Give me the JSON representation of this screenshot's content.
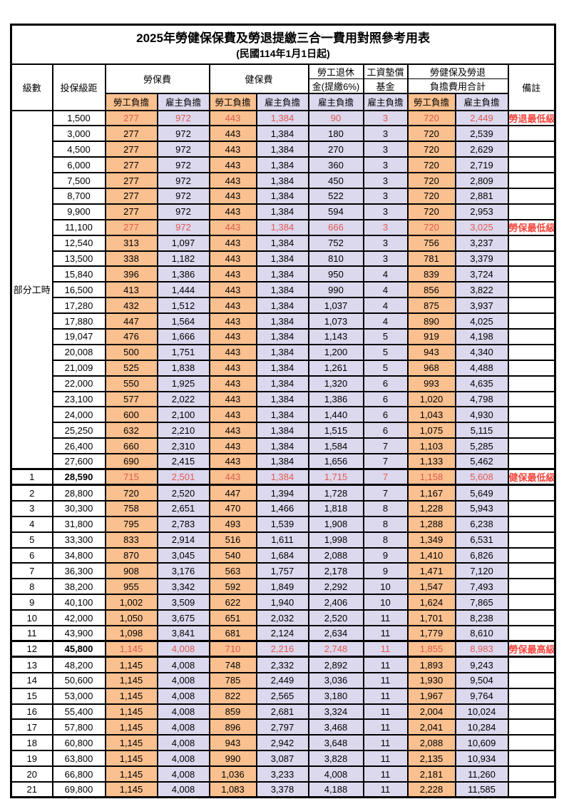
{
  "title": "2025年勞健保保費及勞退提繳三合一費用對照參考用表",
  "subtitle": "(民國114年1月1日起)",
  "columns": {
    "level": "級數",
    "bracket": "投保級距",
    "labor_insurance": "勞保費",
    "health_insurance": "健保費",
    "pension_line1": "勞工退休",
    "pension_line2": "金(提繳6%)",
    "wage_fund_line1": "工資墊償",
    "wage_fund_line2": "基金",
    "total_line1": "勞健保及勞退",
    "total_line2": "負擔費用合計",
    "remark": "備註",
    "employee": "勞工負擔",
    "employer": "雇主負擔"
  },
  "colors": {
    "employee_bg": "#fac08f",
    "employer_bg": "#dcd8ee",
    "highlight_red": "#e05a50",
    "note_red": "#f4473f"
  },
  "part_time_label": "部分工時",
  "part_time_span": 23,
  "rows": [
    {
      "level": "",
      "bracket": "1,500",
      "values": [
        "277",
        "972",
        "443",
        "1,384",
        "90",
        "3",
        "720",
        "2,449"
      ],
      "note": "勞退最低級距",
      "red": true,
      "bold": false,
      "thick": false
    },
    {
      "level": "",
      "bracket": "3,000",
      "values": [
        "277",
        "972",
        "443",
        "1,384",
        "180",
        "3",
        "720",
        "2,539"
      ],
      "note": "",
      "red": false,
      "bold": false,
      "thick": false
    },
    {
      "level": "",
      "bracket": "4,500",
      "values": [
        "277",
        "972",
        "443",
        "1,384",
        "270",
        "3",
        "720",
        "2,629"
      ],
      "note": "",
      "red": false,
      "bold": false,
      "thick": false
    },
    {
      "level": "",
      "bracket": "6,000",
      "values": [
        "277",
        "972",
        "443",
        "1,384",
        "360",
        "3",
        "720",
        "2,719"
      ],
      "note": "",
      "red": false,
      "bold": false,
      "thick": false
    },
    {
      "level": "",
      "bracket": "7,500",
      "values": [
        "277",
        "972",
        "443",
        "1,384",
        "450",
        "3",
        "720",
        "2,809"
      ],
      "note": "",
      "red": false,
      "bold": false,
      "thick": false
    },
    {
      "level": "",
      "bracket": "8,700",
      "values": [
        "277",
        "972",
        "443",
        "1,384",
        "522",
        "3",
        "720",
        "2,881"
      ],
      "note": "",
      "red": false,
      "bold": false,
      "thick": false
    },
    {
      "level": "",
      "bracket": "9,900",
      "values": [
        "277",
        "972",
        "443",
        "1,384",
        "594",
        "3",
        "720",
        "2,953"
      ],
      "note": "",
      "red": false,
      "bold": false,
      "thick": false
    },
    {
      "level": "",
      "bracket": "11,100",
      "values": [
        "277",
        "972",
        "443",
        "1,384",
        "666",
        "3",
        "720",
        "3,025"
      ],
      "note": "勞保最低級距",
      "red": true,
      "bold": false,
      "thick": false
    },
    {
      "level": "",
      "bracket": "12,540",
      "values": [
        "313",
        "1,097",
        "443",
        "1,384",
        "752",
        "3",
        "756",
        "3,237"
      ],
      "note": "",
      "red": false,
      "bold": false,
      "thick": false
    },
    {
      "level": "",
      "bracket": "13,500",
      "values": [
        "338",
        "1,182",
        "443",
        "1,384",
        "810",
        "3",
        "781",
        "3,379"
      ],
      "note": "",
      "red": false,
      "bold": false,
      "thick": false
    },
    {
      "level": "",
      "bracket": "15,840",
      "values": [
        "396",
        "1,386",
        "443",
        "1,384",
        "950",
        "4",
        "839",
        "3,724"
      ],
      "note": "",
      "red": false,
      "bold": false,
      "thick": false
    },
    {
      "level": "",
      "bracket": "16,500",
      "values": [
        "413",
        "1,444",
        "443",
        "1,384",
        "990",
        "4",
        "856",
        "3,822"
      ],
      "note": "",
      "red": false,
      "bold": false,
      "thick": false
    },
    {
      "level": "",
      "bracket": "17,280",
      "values": [
        "432",
        "1,512",
        "443",
        "1,384",
        "1,037",
        "4",
        "875",
        "3,937"
      ],
      "note": "",
      "red": false,
      "bold": false,
      "thick": false
    },
    {
      "level": "",
      "bracket": "17,880",
      "values": [
        "447",
        "1,564",
        "443",
        "1,384",
        "1,073",
        "4",
        "890",
        "4,025"
      ],
      "note": "",
      "red": false,
      "bold": false,
      "thick": false
    },
    {
      "level": "",
      "bracket": "19,047",
      "values": [
        "476",
        "1,666",
        "443",
        "1,384",
        "1,143",
        "5",
        "919",
        "4,198"
      ],
      "note": "",
      "red": false,
      "bold": false,
      "thick": false
    },
    {
      "level": "",
      "bracket": "20,008",
      "values": [
        "500",
        "1,751",
        "443",
        "1,384",
        "1,200",
        "5",
        "943",
        "4,340"
      ],
      "note": "",
      "red": false,
      "bold": false,
      "thick": false
    },
    {
      "level": "",
      "bracket": "21,009",
      "values": [
        "525",
        "1,838",
        "443",
        "1,384",
        "1,261",
        "5",
        "968",
        "4,488"
      ],
      "note": "",
      "red": false,
      "bold": false,
      "thick": false
    },
    {
      "level": "",
      "bracket": "22,000",
      "values": [
        "550",
        "1,925",
        "443",
        "1,384",
        "1,320",
        "6",
        "993",
        "4,635"
      ],
      "note": "",
      "red": false,
      "bold": false,
      "thick": false
    },
    {
      "level": "",
      "bracket": "23,100",
      "values": [
        "577",
        "2,022",
        "443",
        "1,384",
        "1,386",
        "6",
        "1,020",
        "4,798"
      ],
      "note": "",
      "red": false,
      "bold": false,
      "thick": false
    },
    {
      "level": "",
      "bracket": "24,000",
      "values": [
        "600",
        "2,100",
        "443",
        "1,384",
        "1,440",
        "6",
        "1,043",
        "4,930"
      ],
      "note": "",
      "red": false,
      "bold": false,
      "thick": false
    },
    {
      "level": "",
      "bracket": "25,250",
      "values": [
        "632",
        "2,210",
        "443",
        "1,384",
        "1,515",
        "6",
        "1,075",
        "5,115"
      ],
      "note": "",
      "red": false,
      "bold": false,
      "thick": false
    },
    {
      "level": "",
      "bracket": "26,400",
      "values": [
        "660",
        "2,310",
        "443",
        "1,384",
        "1,584",
        "7",
        "1,103",
        "5,285"
      ],
      "note": "",
      "red": false,
      "bold": false,
      "thick": false
    },
    {
      "level": "",
      "bracket": "27,600",
      "values": [
        "690",
        "2,415",
        "443",
        "1,384",
        "1,656",
        "7",
        "1,133",
        "5,462"
      ],
      "note": "",
      "red": false,
      "bold": false,
      "thick": false
    },
    {
      "level": "1",
      "bracket": "28,590",
      "values": [
        "715",
        "2,501",
        "443",
        "1,384",
        "1,715",
        "7",
        "1,158",
        "5,608"
      ],
      "note": "健保最低級距",
      "red": true,
      "bold": true,
      "thick": true
    },
    {
      "level": "2",
      "bracket": "28,800",
      "values": [
        "720",
        "2,520",
        "447",
        "1,394",
        "1,728",
        "7",
        "1,167",
        "5,649"
      ],
      "note": "",
      "red": false,
      "bold": false,
      "thick": false
    },
    {
      "level": "3",
      "bracket": "30,300",
      "values": [
        "758",
        "2,651",
        "470",
        "1,466",
        "1,818",
        "8",
        "1,228",
        "5,943"
      ],
      "note": "",
      "red": false,
      "bold": false,
      "thick": false
    },
    {
      "level": "4",
      "bracket": "31,800",
      "values": [
        "795",
        "2,783",
        "493",
        "1,539",
        "1,908",
        "8",
        "1,288",
        "6,238"
      ],
      "note": "",
      "red": false,
      "bold": false,
      "thick": false
    },
    {
      "level": "5",
      "bracket": "33,300",
      "values": [
        "833",
        "2,914",
        "516",
        "1,611",
        "1,998",
        "8",
        "1,349",
        "6,531"
      ],
      "note": "",
      "red": false,
      "bold": false,
      "thick": false
    },
    {
      "level": "6",
      "bracket": "34,800",
      "values": [
        "870",
        "3,045",
        "540",
        "1,684",
        "2,088",
        "9",
        "1,410",
        "6,826"
      ],
      "note": "",
      "red": false,
      "bold": false,
      "thick": false
    },
    {
      "level": "7",
      "bracket": "36,300",
      "values": [
        "908",
        "3,176",
        "563",
        "1,757",
        "2,178",
        "9",
        "1,471",
        "7,120"
      ],
      "note": "",
      "red": false,
      "bold": false,
      "thick": false
    },
    {
      "level": "8",
      "bracket": "38,200",
      "values": [
        "955",
        "3,342",
        "592",
        "1,849",
        "2,292",
        "10",
        "1,547",
        "7,493"
      ],
      "note": "",
      "red": false,
      "bold": false,
      "thick": false
    },
    {
      "level": "9",
      "bracket": "40,100",
      "values": [
        "1,002",
        "3,509",
        "622",
        "1,940",
        "2,406",
        "10",
        "1,624",
        "7,865"
      ],
      "note": "",
      "red": false,
      "bold": false,
      "thick": false
    },
    {
      "level": "10",
      "bracket": "42,000",
      "values": [
        "1,050",
        "3,675",
        "651",
        "2,032",
        "2,520",
        "11",
        "1,701",
        "8,238"
      ],
      "note": "",
      "red": false,
      "bold": false,
      "thick": false
    },
    {
      "level": "11",
      "bracket": "43,900",
      "values": [
        "1,098",
        "3,841",
        "681",
        "2,124",
        "2,634",
        "11",
        "1,779",
        "8,610"
      ],
      "note": "",
      "red": false,
      "bold": false,
      "thick": false
    },
    {
      "level": "12",
      "bracket": "45,800",
      "values": [
        "1,145",
        "4,008",
        "710",
        "2,216",
        "2,748",
        "11",
        "1,855",
        "8,983"
      ],
      "note": "勞保最高級距",
      "red": true,
      "bold": true,
      "thick": true
    },
    {
      "level": "13",
      "bracket": "48,200",
      "values": [
        "1,145",
        "4,008",
        "748",
        "2,332",
        "2,892",
        "11",
        "1,893",
        "9,243"
      ],
      "note": "",
      "red": false,
      "bold": false,
      "thick": false
    },
    {
      "level": "14",
      "bracket": "50,600",
      "values": [
        "1,145",
        "4,008",
        "785",
        "2,449",
        "3,036",
        "11",
        "1,930",
        "9,504"
      ],
      "note": "",
      "red": false,
      "bold": false,
      "thick": false
    },
    {
      "level": "15",
      "bracket": "53,000",
      "values": [
        "1,145",
        "4,008",
        "822",
        "2,565",
        "3,180",
        "11",
        "1,967",
        "9,764"
      ],
      "note": "",
      "red": false,
      "bold": false,
      "thick": false
    },
    {
      "level": "16",
      "bracket": "55,400",
      "values": [
        "1,145",
        "4,008",
        "859",
        "2,681",
        "3,324",
        "11",
        "2,004",
        "10,024"
      ],
      "note": "",
      "red": false,
      "bold": false,
      "thick": false
    },
    {
      "level": "17",
      "bracket": "57,800",
      "values": [
        "1,145",
        "4,008",
        "896",
        "2,797",
        "3,468",
        "11",
        "2,041",
        "10,284"
      ],
      "note": "",
      "red": false,
      "bold": false,
      "thick": false
    },
    {
      "level": "18",
      "bracket": "60,800",
      "values": [
        "1,145",
        "4,008",
        "943",
        "2,942",
        "3,648",
        "11",
        "2,088",
        "10,609"
      ],
      "note": "",
      "red": false,
      "bold": false,
      "thick": false
    },
    {
      "level": "19",
      "bracket": "63,800",
      "values": [
        "1,145",
        "4,008",
        "990",
        "3,087",
        "3,828",
        "11",
        "2,135",
        "10,934"
      ],
      "note": "",
      "red": false,
      "bold": false,
      "thick": false
    },
    {
      "level": "20",
      "bracket": "66,800",
      "values": [
        "1,145",
        "4,008",
        "1,036",
        "3,233",
        "4,008",
        "11",
        "2,181",
        "11,260"
      ],
      "note": "",
      "red": false,
      "bold": false,
      "thick": false
    },
    {
      "level": "21",
      "bracket": "69,800",
      "values": [
        "1,145",
        "4,008",
        "1,083",
        "3,378",
        "4,188",
        "11",
        "2,228",
        "11,585"
      ],
      "note": "",
      "red": false,
      "bold": false,
      "thick": false
    }
  ]
}
